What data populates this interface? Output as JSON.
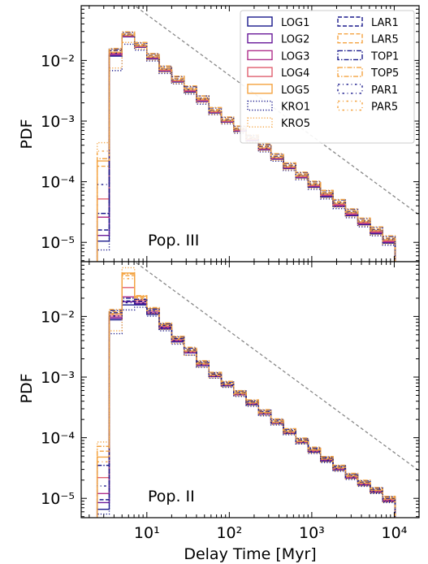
{
  "chart_data": [
    {
      "type": "line",
      "panel": "top",
      "annotation": "Pop. III",
      "ylabel": "PDF",
      "xlabel": "",
      "xscale": "log",
      "yscale": "log",
      "xlim": [
        1.6,
        20000
      ],
      "ylim": [
        4.8e-06,
        0.08
      ],
      "y_ticks": [
        "10^-5",
        "10^-4",
        "10^-3",
        "10^-2"
      ],
      "legend_position": "top-right",
      "bin_edges": [
        2.5,
        3.5,
        5.0,
        7.1,
        10.0,
        14.1,
        20.0,
        28.3,
        40.0,
        56.6,
        80.0,
        113,
        160,
        226,
        320,
        453,
        640,
        905,
        1280,
        1810,
        2560,
        3620,
        5120,
        7240,
        10240,
        14500
      ],
      "reference_line": {
        "style": "dashed",
        "color": "#888888",
        "slope": -1,
        "anchor_x": 10,
        "anchor_y": 0.057
      },
      "series": [
        {
          "name": "LOG1",
          "color": "#1a1a8c",
          "style": "solid",
          "values": [
            1.05e-05,
            0.0118,
            0.0245,
            0.0165,
            0.0106,
            0.0066,
            0.0044,
            0.003,
            0.0021,
            0.00136,
            0.00096,
            0.00068,
            0.000475,
            0.000335,
            0.000235,
            0.000165,
            0.000116,
            8.1e-05,
            5.6e-05,
            3.9e-05,
            2.75e-05,
            1.95e-05,
            1.38e-05,
            9.7e-06
          ]
        },
        {
          "name": "LOG2",
          "color": "#6a1b9a",
          "style": "solid",
          "values": [
            1.3e-05,
            0.0122,
            0.0248,
            0.0167,
            0.0108,
            0.0067,
            0.0045,
            0.0031,
            0.0021,
            0.00138,
            0.00097,
            0.00069,
            0.00048,
            0.00034,
            0.000238,
            0.000168,
            0.000118,
            8.3e-05,
            5.8e-05,
            4e-05,
            2.83e-05,
            2e-05,
            1.42e-05,
            1e-05
          ]
        },
        {
          "name": "LOG3",
          "color": "#b0308c",
          "style": "solid",
          "values": [
            2.6e-05,
            0.0127,
            0.0252,
            0.0169,
            0.011,
            0.0068,
            0.0046,
            0.0031,
            0.0022,
            0.0014,
            0.00098,
            0.0007,
            0.00049,
            0.000345,
            0.000242,
            0.00017,
            0.00012,
            8.5e-05,
            6e-05,
            4.1e-05,
            2.9e-05,
            2.05e-05,
            1.46e-05,
            1.03e-05
          ]
        },
        {
          "name": "LOG4",
          "color": "#e06070",
          "style": "solid",
          "values": [
            5.2e-05,
            0.0131,
            0.0256,
            0.0171,
            0.0112,
            0.0069,
            0.0046,
            0.0032,
            0.0022,
            0.00142,
            0.001,
            0.00071,
            0.0005,
            0.00035,
            0.000246,
            0.000173,
            0.000122,
            8.7e-05,
            6.1e-05,
            4.2e-05,
            2.98e-05,
            2.1e-05,
            1.5e-05,
            1.06e-05
          ]
        },
        {
          "name": "LOG5",
          "color": "#f4a340",
          "style": "solid",
          "values": [
            0.00022,
            0.0137,
            0.026,
            0.0174,
            0.0114,
            0.0071,
            0.0047,
            0.0033,
            0.0023,
            0.00145,
            0.00102,
            0.00073,
            0.00051,
            0.00036,
            0.00025,
            0.000177,
            0.000125,
            8.9e-05,
            6.3e-05,
            4.4e-05,
            3.1e-05,
            2.18e-05,
            1.56e-05,
            1.1e-05
          ]
        },
        {
          "name": "KRO1",
          "color": "#1a1a8c",
          "style": "dotted",
          "values": [
            7.5e-06,
            0.0068,
            0.0185,
            0.0148,
            0.0098,
            0.0061,
            0.0041,
            0.0028,
            0.0019,
            0.00128,
            0.0009,
            0.00063,
            0.00044,
            0.00031,
            0.000218,
            0.000153,
            0.000108,
            7.5e-05,
            5.2e-05,
            3.6e-05,
            2.55e-05,
            1.8e-05,
            1.28e-05,
            9e-06
          ]
        },
        {
          "name": "KRO5",
          "color": "#f4a340",
          "style": "dotted",
          "values": [
            0.00044,
            0.0075,
            0.0198,
            0.0155,
            0.0102,
            0.0063,
            0.0042,
            0.0029,
            0.002,
            0.0013,
            0.00092,
            0.00065,
            0.00045,
            0.00032,
            0.000225,
            0.000158,
            0.000111,
            7.8e-05,
            5.4e-05,
            3.8e-05,
            2.65e-05,
            1.87e-05,
            1.33e-05,
            9.4e-06
          ]
        },
        {
          "name": "LAR1",
          "color": "#1a1a8c",
          "style": "dashed",
          "values": [
            1.6e-05,
            0.0145,
            0.0272,
            0.0182,
            0.012,
            0.0075,
            0.005,
            0.0035,
            0.0024,
            0.00152,
            0.00107,
            0.00076,
            0.00054,
            0.00038,
            0.000264,
            0.000186,
            0.000131,
            9.3e-05,
            6.6e-05,
            4.6e-05,
            3.25e-05,
            2.28e-05,
            1.63e-05,
            1.15e-05
          ]
        },
        {
          "name": "LAR5",
          "color": "#f4a340",
          "style": "dashed",
          "values": [
            0.00018,
            0.0149,
            0.0276,
            0.0185,
            0.0122,
            0.0076,
            0.0051,
            0.0035,
            0.0024,
            0.00155,
            0.00109,
            0.00077,
            0.00055,
            0.00039,
            0.00027,
            0.00019,
            0.000134,
            9.5e-05,
            6.7e-05,
            4.7e-05,
            3.32e-05,
            2.33e-05,
            1.67e-05,
            1.18e-05
          ]
        },
        {
          "name": "TOP1",
          "color": "#1a1a8c",
          "style": "dashdot",
          "values": [
            3e-05,
            0.0154,
            0.029,
            0.0195,
            0.0128,
            0.008,
            0.0054,
            0.0037,
            0.0026,
            0.00164,
            0.00115,
            0.00082,
            0.00058,
            0.00041,
            0.000285,
            0.0002,
            0.000141,
            0.0001,
            7.1e-05,
            5e-05,
            3.5e-05,
            2.47e-05,
            1.77e-05,
            1.25e-05
          ]
        },
        {
          "name": "TOP5",
          "color": "#f4a340",
          "style": "dashdot",
          "values": [
            0.00024,
            0.0158,
            0.0296,
            0.0198,
            0.013,
            0.0081,
            0.0055,
            0.0038,
            0.0026,
            0.00167,
            0.00117,
            0.00083,
            0.00059,
            0.00042,
            0.00029,
            0.000204,
            0.000144,
            0.000102,
            7.2e-05,
            5.1e-05,
            3.57e-05,
            2.52e-05,
            1.8e-05,
            1.28e-05
          ]
        },
        {
          "name": "PAR1",
          "color": "#1a1a8c",
          "style": "loose-dashdot",
          "values": [
            9e-05,
            0.0132,
            0.0262,
            0.0176,
            0.0115,
            0.0072,
            0.0048,
            0.0033,
            0.0023,
            0.00146,
            0.00103,
            0.00073,
            0.00052,
            0.00036,
            0.000252,
            0.000178,
            0.000126,
            8.9e-05,
            6.3e-05,
            4.4e-05,
            3.1e-05,
            2.19e-05,
            1.57e-05,
            1.11e-05
          ]
        },
        {
          "name": "PAR5",
          "color": "#f4a340",
          "style": "loose-dashdot",
          "values": [
            0.00032,
            0.0136,
            0.0266,
            0.0179,
            0.0117,
            0.0073,
            0.0049,
            0.0034,
            0.0023,
            0.00148,
            0.00104,
            0.00074,
            0.00053,
            0.00037,
            0.000256,
            0.00018,
            0.000128,
            9e-05,
            6.4e-05,
            4.5e-05,
            3.15e-05,
            2.22e-05,
            1.59e-05,
            1.12e-05
          ]
        }
      ]
    },
    {
      "type": "line",
      "panel": "bottom",
      "annotation": "Pop. II",
      "ylabel": "PDF",
      "xlabel": "Delay Time [Myr]",
      "xscale": "log",
      "yscale": "log",
      "xlim": [
        1.6,
        20000
      ],
      "ylim": [
        4.8e-06,
        0.08
      ],
      "x_ticks": [
        "10^1",
        "10^2",
        "10^3",
        "10^4"
      ],
      "y_ticks": [
        "10^-5",
        "10^-4",
        "10^-3",
        "10^-2"
      ],
      "bin_edges": [
        2.5,
        3.5,
        5.0,
        7.1,
        10.0,
        14.1,
        20.0,
        28.3,
        40.0,
        56.6,
        80.0,
        113,
        160,
        226,
        320,
        453,
        640,
        905,
        1280,
        1810,
        2560,
        3620,
        5120,
        7240,
        10240,
        14500
      ],
      "reference_line": {
        "style": "dashed",
        "color": "#888888",
        "slope": -1,
        "anchor_x": 10,
        "anchor_y": 0.057
      },
      "series": [
        {
          "name": "LOG1",
          "color": "#1a1a8c",
          "style": "solid",
          "values": [
            6.6e-06,
            0.0088,
            0.0155,
            0.0155,
            0.0108,
            0.0062,
            0.0038,
            0.0025,
            0.00155,
            0.00102,
            0.00072,
            0.00051,
            0.00035,
            0.000245,
            0.000172,
            0.000118,
            8.3e-05,
            5.8e-05,
            4.1e-05,
            2.95e-05,
            2.15e-05,
            1.65e-05,
            1.25e-05,
            8.8e-06
          ]
        },
        {
          "name": "LOG2",
          "color": "#6a1b9a",
          "style": "solid",
          "values": [
            8.5e-06,
            0.0093,
            0.0175,
            0.0162,
            0.0112,
            0.0064,
            0.0039,
            0.0025,
            0.00157,
            0.00103,
            0.00073,
            0.00051,
            0.00036,
            0.000248,
            0.000174,
            0.00012,
            8.4e-05,
            5.9e-05,
            4.2e-05,
            3e-05,
            2.18e-05,
            1.68e-05,
            1.28e-05,
            9e-06
          ]
        },
        {
          "name": "LOG3",
          "color": "#b0308c",
          "style": "solid",
          "values": [
            1.2e-05,
            0.0098,
            0.021,
            0.0172,
            0.0118,
            0.0066,
            0.004,
            0.0026,
            0.0016,
            0.00104,
            0.00074,
            0.00052,
            0.00036,
            0.00025,
            0.000176,
            0.000121,
            8.5e-05,
            6e-05,
            4.3e-05,
            3.05e-05,
            2.22e-05,
            1.71e-05,
            1.3e-05,
            9.2e-06
          ]
        },
        {
          "name": "LOG4",
          "color": "#e06070",
          "style": "solid",
          "values": [
            2.2e-05,
            0.0105,
            0.03,
            0.0185,
            0.0125,
            0.0069,
            0.0041,
            0.0026,
            0.00163,
            0.00106,
            0.00075,
            0.00053,
            0.00037,
            0.000254,
            0.000178,
            0.000123,
            8.6e-05,
            6.1e-05,
            4.4e-05,
            3.1e-05,
            2.27e-05,
            1.75e-05,
            1.33e-05,
            9.5e-06
          ]
        },
        {
          "name": "LOG5",
          "color": "#f4a340",
          "style": "solid",
          "values": [
            4.8e-05,
            0.0112,
            0.052,
            0.0215,
            0.0135,
            0.0073,
            0.0043,
            0.0027,
            0.00168,
            0.00108,
            0.00076,
            0.00054,
            0.00038,
            0.00026,
            0.000181,
            0.000126,
            8.8e-05,
            6.3e-05,
            4.5e-05,
            3.2e-05,
            2.35e-05,
            1.8e-05,
            1.37e-05,
            9.9e-06
          ]
        },
        {
          "name": "KRO1",
          "color": "#1a1a8c",
          "style": "dotted",
          "values": [
            5.5e-06,
            0.0052,
            0.0128,
            0.0142,
            0.0101,
            0.0058,
            0.0035,
            0.0023,
            0.00145,
            0.00096,
            0.00068,
            0.00048,
            0.00033,
            0.00023,
            0.000162,
            0.000112,
            7.9e-05,
            5.5e-05,
            3.9e-05,
            2.8e-05,
            2.05e-05,
            1.58e-05,
            1.2e-05,
            8.5e-06
          ]
        },
        {
          "name": "KRO5",
          "color": "#f4a340",
          "style": "dotted",
          "values": [
            8.5e-05,
            0.0058,
            0.0635,
            0.019,
            0.0112,
            0.0061,
            0.0036,
            0.0023,
            0.00147,
            0.00097,
            0.00069,
            0.00049,
            0.00034,
            0.000234,
            0.000165,
            0.000114,
            8e-05,
            5.6e-05,
            4e-05,
            2.85e-05,
            2.1e-05,
            1.61e-05,
            1.23e-05,
            8.7e-06
          ]
        },
        {
          "name": "LAR1",
          "color": "#1a1a8c",
          "style": "dashed",
          "values": [
            9.5e-06,
            0.0115,
            0.018,
            0.0178,
            0.0124,
            0.0071,
            0.0043,
            0.0028,
            0.00172,
            0.00112,
            0.00079,
            0.00056,
            0.00039,
            0.00027,
            0.00019,
            0.000131,
            9.2e-05,
            6.5e-05,
            4.6e-05,
            3.3e-05,
            2.42e-05,
            1.86e-05,
            1.41e-05,
            1e-05
          ]
        },
        {
          "name": "LAR5",
          "color": "#f4a340",
          "style": "dashed",
          "values": [
            6e-05,
            0.012,
            0.047,
            0.0205,
            0.0134,
            0.0075,
            0.0045,
            0.0029,
            0.00176,
            0.00115,
            0.00081,
            0.00057,
            0.0004,
            0.000276,
            0.000194,
            0.000134,
            9.4e-05,
            6.6e-05,
            4.7e-05,
            3.37e-05,
            2.47e-05,
            1.9e-05,
            1.44e-05,
            1.03e-05
          ]
        },
        {
          "name": "TOP1",
          "color": "#1a1a8c",
          "style": "dashdot",
          "values": [
            3.5e-05,
            0.0125,
            0.02,
            0.0192,
            0.0132,
            0.0076,
            0.0046,
            0.003,
            0.00182,
            0.00118,
            0.00083,
            0.00059,
            0.00041,
            0.000285,
            0.0002,
            0.000138,
            9.7e-05,
            6.8e-05,
            4.8e-05,
            3.45e-05,
            2.53e-05,
            1.95e-05,
            1.48e-05,
            1.06e-05
          ]
        },
        {
          "name": "TOP5",
          "color": "#f4a340",
          "style": "dashdot",
          "values": [
            7.2e-05,
            0.013,
            0.05,
            0.022,
            0.014,
            0.0078,
            0.0047,
            0.0031,
            0.00186,
            0.0012,
            0.00085,
            0.0006,
            0.00042,
            0.00029,
            0.000204,
            0.000141,
            9.9e-05,
            7e-05,
            4.9e-05,
            3.52e-05,
            2.58e-05,
            1.99e-05,
            1.51e-05,
            1.08e-05
          ]
        },
        {
          "name": "PAR1",
          "color": "#1a1a8c",
          "style": "loose-dashdot",
          "values": [
            1.6e-05,
            0.0102,
            0.0168,
            0.0165,
            0.0115,
            0.0066,
            0.004,
            0.0026,
            0.0016,
            0.00105,
            0.00074,
            0.00052,
            0.00036,
            0.00025,
            0.000176,
            0.000121,
            8.5e-05,
            6e-05,
            4.3e-05,
            3.1e-05,
            2.25e-05,
            1.73e-05,
            1.31e-05,
            9.3e-06
          ]
        },
        {
          "name": "PAR5",
          "color": "#f4a340",
          "style": "loose-dashdot",
          "values": [
            4e-05,
            0.0108,
            0.042,
            0.0195,
            0.0125,
            0.007,
            0.0042,
            0.0027,
            0.00165,
            0.00107,
            0.00076,
            0.00053,
            0.00037,
            0.000256,
            0.00018,
            0.000124,
            8.7e-05,
            6.2e-05,
            4.4e-05,
            3.16e-05,
            2.3e-05,
            1.77e-05,
            1.34e-05,
            9.6e-06
          ]
        }
      ]
    }
  ],
  "legend_order": [
    "LOG1",
    "LOG2",
    "LOG3",
    "LOG4",
    "LOG5",
    "KRO1",
    "KRO5",
    "LAR1",
    "LAR5",
    "TOP1",
    "TOP5",
    "PAR1",
    "PAR5"
  ]
}
